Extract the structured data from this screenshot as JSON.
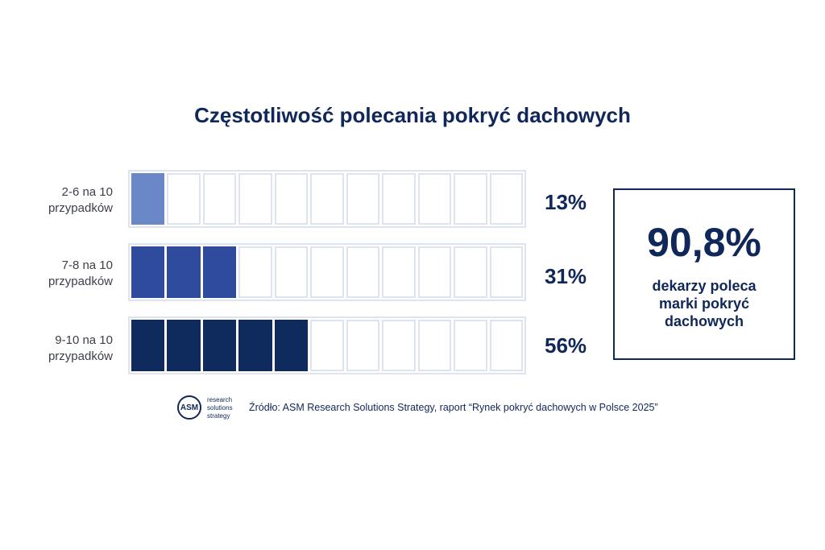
{
  "chart_data": {
    "type": "bar",
    "title": "Częstotliwość polecania pokryć dachowych",
    "categories": [
      "2-6 na 10 przypadków",
      "7-8 na 10 przypadków",
      "9-10 na 10 przypadków"
    ],
    "category_lines": [
      [
        "2-6 na 10",
        "przypadków"
      ],
      [
        "7-8 na 10",
        "przypadków"
      ],
      [
        "9-10 na 10",
        "przypadków"
      ]
    ],
    "values": [
      13,
      31,
      56
    ],
    "value_labels": [
      "13%",
      "31%",
      "56%"
    ],
    "filled_cells": [
      1,
      3,
      5
    ],
    "total_cells": 11,
    "colors": [
      "#6a87c8",
      "#2f4b9d",
      "#0f2a5c"
    ],
    "unit": "%"
  },
  "callout": {
    "value": "90,8%",
    "lines": [
      "dekarzy poleca",
      "marki pokryć",
      "dachowych"
    ]
  },
  "footer": {
    "logo_text": "ASM",
    "logo_words": [
      "research",
      "solutions",
      "strategy"
    ],
    "source": "Źródło: ASM Research Solutions Strategy, raport “Rynek pokryć dachowych w Polsce 2025”"
  },
  "colors": {
    "navy": "#10275a",
    "cell_border": "#dde3f0"
  }
}
